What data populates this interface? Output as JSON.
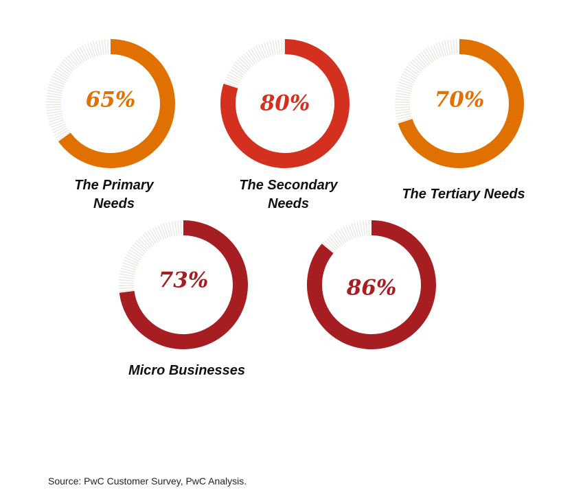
{
  "chart_data": {
    "type": "donut",
    "gauges": [
      {
        "value": 65,
        "label": "65%",
        "caption_lines": [
          "The Primary",
          "Needs"
        ],
        "color": "#E07000"
      },
      {
        "value": 80,
        "label": "80%",
        "caption_lines": [
          "The Secondary",
          "Needs"
        ],
        "color": "#D4301F"
      },
      {
        "value": 70,
        "label": "70%",
        "caption_lines": [
          "The Tertiary Needs"
        ],
        "color": "#E07000"
      },
      {
        "value": 73,
        "label": "73%",
        "caption_lines": [
          "Micro Businesses"
        ],
        "color": "#A61E22"
      },
      {
        "value": 86,
        "label": "86%",
        "caption_lines": [],
        "color": "#A61E22"
      }
    ],
    "remainder_color": "#EAE6E1"
  },
  "source_note": "Source: PwC Customer Survey, PwC Analysis."
}
